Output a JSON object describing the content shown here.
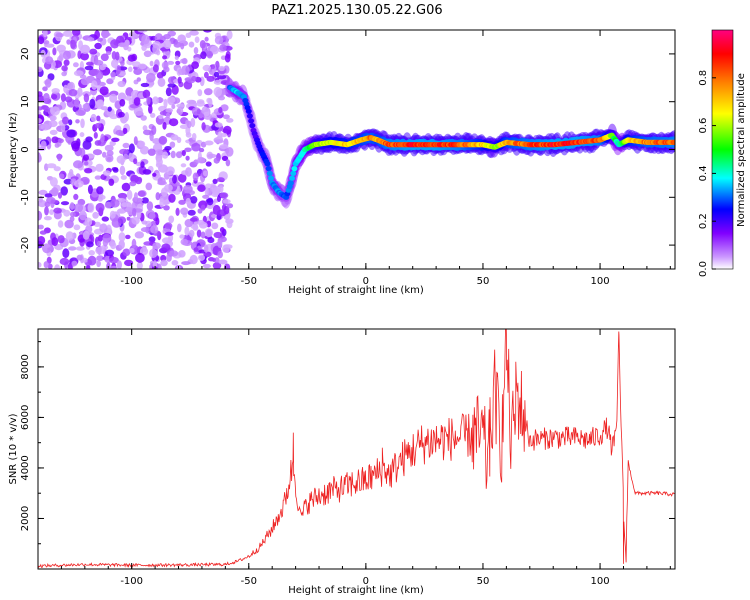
{
  "title": "PAZ1.2025.130.05.22.G06",
  "chart_data": [
    {
      "type": "heatmap",
      "xlabel": "Height of straight line (km)",
      "ylabel": "Frequency (Hz)",
      "xlim": [
        -140,
        132
      ],
      "ylim": [
        -25,
        25
      ],
      "xticks": [
        -100,
        -50,
        0,
        50,
        100
      ],
      "yticks": [
        -20,
        -10,
        0,
        10,
        20
      ],
      "colorbar": {
        "label": "Normalized spectral amplitude",
        "range": [
          0,
          1
        ],
        "ticks": [
          "0.0",
          "0.2",
          "0.4",
          "0.6",
          "0.8"
        ],
        "colors": [
          "#ffffff",
          "#cc99ff",
          "#8000ff",
          "#0000ff",
          "#00ffff",
          "#00ff00",
          "#ffff00",
          "#ff8000",
          "#ff0000",
          "#ff0080"
        ]
      },
      "noise_region": {
        "x_range": [
          -140,
          -58
        ],
        "f_range": [
          -25,
          25
        ],
        "amplitude": "low (0.05-0.2)"
      },
      "ridge": {
        "x": [
          -58,
          -55,
          -52,
          -50,
          -48,
          -45,
          -42,
          -40,
          -37,
          -34,
          -32,
          -30,
          -26,
          -22,
          -15,
          -8,
          -2,
          2,
          5,
          10,
          20,
          30,
          40,
          50,
          55,
          60,
          70,
          80,
          90,
          100,
          105,
          108,
          112,
          120,
          132
        ],
        "frequency": [
          13,
          12,
          11,
          8,
          4,
          0,
          -3,
          -7,
          -9,
          -10,
          -7,
          -3,
          0,
          1,
          1.5,
          1,
          2,
          2.5,
          2,
          1,
          1,
          1,
          1,
          1,
          0.5,
          1.5,
          1,
          1,
          1.5,
          2,
          3,
          1,
          2,
          1.5,
          1.5
        ],
        "amplitude": [
          0.3,
          0.4,
          0.35,
          0.25,
          0.2,
          0.25,
          0.3,
          0.35,
          0.35,
          0.3,
          0.35,
          0.4,
          0.45,
          0.6,
          0.7,
          0.75,
          0.8,
          0.85,
          0.8,
          0.9,
          0.95,
          0.95,
          0.9,
          0.75,
          0.6,
          0.8,
          0.9,
          0.95,
          0.95,
          0.9,
          0.6,
          0.4,
          0.75,
          0.85,
          0.9
        ]
      }
    },
    {
      "type": "line",
      "xlabel": "Height of straight line (km)",
      "ylabel": "SNR (10 * v/v)",
      "xlim": [
        -140,
        132
      ],
      "ylim": [
        0,
        9500
      ],
      "xticks": [
        -100,
        -50,
        0,
        50,
        100
      ],
      "yticks": [
        2000,
        4000,
        6000,
        8000
      ],
      "series": [
        {
          "color": "#ee2222",
          "x": [
            -140,
            -120,
            -100,
            -80,
            -60,
            -55,
            -50,
            -45,
            -40,
            -35,
            -31,
            -28,
            -25,
            -20,
            -15,
            -10,
            -5,
            0,
            5,
            8,
            10,
            15,
            20,
            25,
            30,
            40,
            45,
            50,
            52,
            55,
            58,
            60,
            62,
            65,
            70,
            80,
            90,
            95,
            100,
            103,
            105,
            107,
            108,
            110,
            111,
            112,
            115,
            120,
            125,
            132
          ],
          "values": [
            120,
            180,
            150,
            160,
            180,
            300,
            500,
            900,
            1600,
            2500,
            4200,
            2000,
            2600,
            2900,
            3100,
            3200,
            3400,
            3500,
            3800,
            4000,
            3700,
            4300,
            4700,
            5000,
            5100,
            5200,
            5300,
            5200,
            4000,
            7000,
            5000,
            9000,
            5000,
            6800,
            5100,
            5200,
            5200,
            5100,
            5300,
            5600,
            4800,
            5200,
            9300,
            2500,
            300,
            4200,
            3000,
            3000,
            3000,
            2950
          ],
          "spikes": [
            {
              "x": -31,
              "y": 5400
            },
            {
              "x": 7,
              "y": 4800
            },
            {
              "x": 53,
              "y": 6800
            },
            {
              "x": 56,
              "y": 7600
            },
            {
              "x": 60,
              "y": 9300
            },
            {
              "x": 64,
              "y": 8200
            },
            {
              "x": 108,
              "y": 9400
            },
            {
              "x": 110,
              "y": 200
            }
          ]
        }
      ]
    }
  ]
}
